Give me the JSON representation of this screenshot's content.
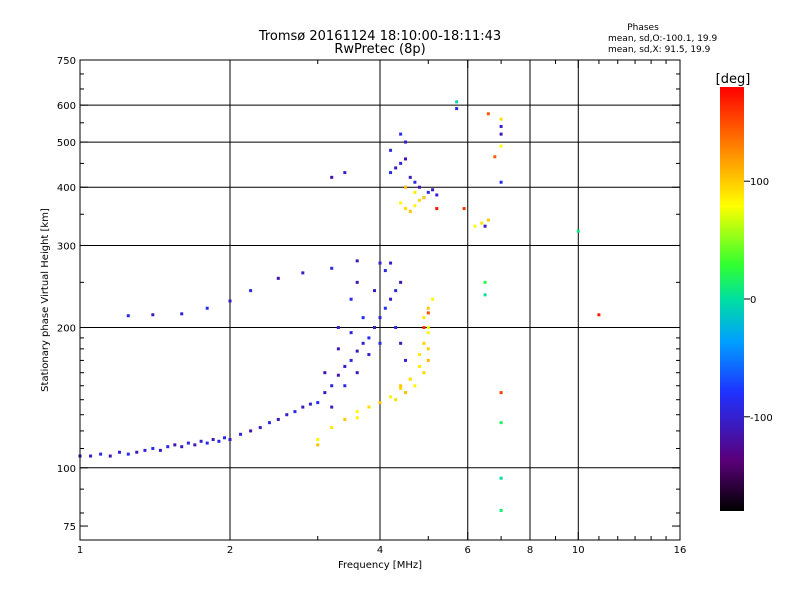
{
  "chart_data": {
    "type": "scatter",
    "title": "Tromsø 20161124 18:10:00-18:11:43",
    "subtitle": "RwPretec (8p)",
    "xlabel": "Frequency [MHz]",
    "ylabel": "Stationary phase Virtual Height [km]",
    "x_scale": "log",
    "y_scale": "log",
    "xlim": [
      1,
      16
    ],
    "ylim": [
      70,
      750
    ],
    "x_ticks": [
      {
        "value": 1,
        "label": "1"
      },
      {
        "value": 2,
        "label": "2"
      },
      {
        "value": 4,
        "label": "4"
      },
      {
        "value": 6,
        "label": "6"
      },
      {
        "value": 8,
        "label": "8"
      },
      {
        "value": 10,
        "label": "10"
      },
      {
        "value": 16,
        "label": "16"
      }
    ],
    "x_grid": [
      2,
      4,
      6,
      8,
      10
    ],
    "y_ticks": [
      {
        "value": 75,
        "label": "75"
      },
      {
        "value": 100,
        "label": "100"
      },
      {
        "value": 200,
        "label": "200"
      },
      {
        "value": 300,
        "label": "300"
      },
      {
        "value": 400,
        "label": "400"
      },
      {
        "value": 500,
        "label": "500"
      },
      {
        "value": 600,
        "label": "600"
      },
      {
        "value": 750,
        "label": "750"
      }
    ],
    "y_grid": [
      100,
      200,
      300,
      400,
      500,
      600
    ],
    "grid": true,
    "legend": {
      "title": "Phases",
      "lines": [
        "mean, sd,O:-100.1, 19.9",
        "mean, sd,X:  91.5, 19.9"
      ],
      "placement": "top-right"
    },
    "colorbar": {
      "label": "[deg]",
      "min": -180,
      "max": 180,
      "ticks": [
        {
          "value": 100,
          "label": "100"
        },
        {
          "value": 0,
          "label": "0"
        },
        {
          "value": -100,
          "label": "-100"
        }
      ],
      "colormap": "black-purple-blue-cyan-green-yellow-red"
    },
    "series": [
      {
        "mode": "O",
        "phase": -100,
        "points": [
          [
            1.0,
            106
          ],
          [
            1.05,
            106
          ],
          [
            1.1,
            107
          ],
          [
            1.15,
            106
          ],
          [
            1.2,
            108
          ],
          [
            1.25,
            107
          ],
          [
            1.3,
            108
          ],
          [
            1.35,
            109
          ],
          [
            1.4,
            110
          ],
          [
            1.45,
            109
          ],
          [
            1.5,
            111
          ],
          [
            1.55,
            112
          ],
          [
            1.6,
            111
          ],
          [
            1.65,
            113
          ],
          [
            1.7,
            112
          ],
          [
            1.75,
            114
          ],
          [
            1.8,
            113
          ],
          [
            1.85,
            115
          ],
          [
            1.9,
            114
          ],
          [
            1.95,
            116
          ],
          [
            2.0,
            115
          ],
          [
            2.1,
            118
          ],
          [
            2.2,
            120
          ],
          [
            2.3,
            122
          ],
          [
            2.4,
            125
          ],
          [
            2.5,
            127
          ],
          [
            2.6,
            130
          ],
          [
            2.7,
            132
          ],
          [
            2.8,
            135
          ],
          [
            2.9,
            137
          ],
          [
            3.0,
            138
          ],
          [
            3.1,
            145
          ],
          [
            3.2,
            150
          ],
          [
            3.3,
            158
          ],
          [
            3.4,
            165
          ],
          [
            3.5,
            170
          ],
          [
            3.6,
            178
          ],
          [
            3.7,
            185
          ],
          [
            3.8,
            190
          ],
          [
            3.9,
            200
          ],
          [
            4.0,
            210
          ],
          [
            4.1,
            220
          ],
          [
            4.2,
            230
          ],
          [
            4.3,
            240
          ],
          [
            4.4,
            250
          ],
          [
            3.2,
            135
          ],
          [
            3.4,
            150
          ],
          [
            3.6,
            160
          ],
          [
            3.8,
            175
          ],
          [
            4.0,
            185
          ],
          [
            3.3,
            180
          ],
          [
            3.5,
            195
          ],
          [
            3.7,
            210
          ],
          [
            3.9,
            240
          ],
          [
            4.1,
            265
          ],
          [
            3.1,
            160
          ],
          [
            3.3,
            200
          ],
          [
            3.5,
            230
          ],
          [
            3.6,
            250
          ],
          [
            4.2,
            275
          ],
          [
            1.25,
            212
          ],
          [
            1.4,
            213
          ],
          [
            1.6,
            214
          ],
          [
            1.8,
            220
          ],
          [
            2.0,
            228
          ],
          [
            2.2,
            240
          ],
          [
            2.5,
            255
          ],
          [
            2.8,
            262
          ],
          [
            3.2,
            268
          ],
          [
            3.6,
            278
          ],
          [
            4.0,
            275
          ],
          [
            4.3,
            200
          ],
          [
            4.4,
            185
          ],
          [
            4.5,
            170
          ],
          [
            4.2,
            430
          ],
          [
            4.3,
            440
          ],
          [
            4.4,
            450
          ],
          [
            4.5,
            460
          ],
          [
            4.6,
            420
          ],
          [
            4.7,
            410
          ],
          [
            4.8,
            400
          ],
          [
            4.9,
            380
          ],
          [
            5.0,
            390
          ],
          [
            5.1,
            395
          ],
          [
            5.2,
            385
          ],
          [
            4.4,
            520
          ],
          [
            4.5,
            500
          ],
          [
            4.2,
            480
          ],
          [
            3.2,
            420
          ],
          [
            3.4,
            430
          ],
          [
            5.7,
            590
          ],
          [
            7.0,
            520
          ],
          [
            7.0,
            540
          ],
          [
            7.0,
            410
          ],
          [
            6.5,
            330
          ]
        ]
      },
      {
        "mode": "X",
        "phase": 92,
        "points": [
          [
            3.0,
            115
          ],
          [
            3.2,
            122
          ],
          [
            3.4,
            127
          ],
          [
            3.6,
            132
          ],
          [
            3.8,
            135
          ],
          [
            4.0,
            138
          ],
          [
            4.2,
            142
          ],
          [
            4.4,
            148
          ],
          [
            4.6,
            155
          ],
          [
            4.8,
            165
          ],
          [
            5.0,
            180
          ],
          [
            5.0,
            195
          ],
          [
            4.9,
            210
          ],
          [
            5.0,
            220
          ],
          [
            5.1,
            230
          ],
          [
            4.3,
            140
          ],
          [
            4.5,
            145
          ],
          [
            4.7,
            150
          ],
          [
            4.9,
            160
          ],
          [
            5.0,
            170
          ],
          [
            4.8,
            175
          ],
          [
            4.9,
            185
          ],
          [
            5.0,
            200
          ],
          [
            4.6,
            155
          ],
          [
            4.4,
            150
          ],
          [
            4.4,
            370
          ],
          [
            4.5,
            360
          ],
          [
            4.6,
            355
          ],
          [
            4.7,
            365
          ],
          [
            4.8,
            375
          ],
          [
            4.5,
            400
          ],
          [
            4.7,
            390
          ],
          [
            4.9,
            380
          ],
          [
            6.2,
            330
          ],
          [
            6.4,
            335
          ],
          [
            6.6,
            340
          ],
          [
            7.0,
            490
          ],
          [
            7.0,
            560
          ],
          [
            3.0,
            112
          ],
          [
            3.6,
            128
          ]
        ]
      },
      {
        "mode": "other",
        "phase": 160,
        "points": [
          [
            6.8,
            465
          ],
          [
            7.0,
            145
          ],
          [
            11.0,
            213
          ],
          [
            6.6,
            575
          ],
          [
            5.9,
            360
          ],
          [
            5.2,
            360
          ],
          [
            5.0,
            215
          ],
          [
            4.9,
            200
          ]
        ]
      },
      {
        "mode": "other",
        "phase": 10,
        "points": [
          [
            5.7,
            610
          ],
          [
            10.0,
            322
          ],
          [
            7.0,
            125
          ],
          [
            7.0,
            95
          ],
          [
            7.0,
            81
          ],
          [
            6.5,
            250
          ],
          [
            6.5,
            235
          ]
        ]
      }
    ]
  }
}
